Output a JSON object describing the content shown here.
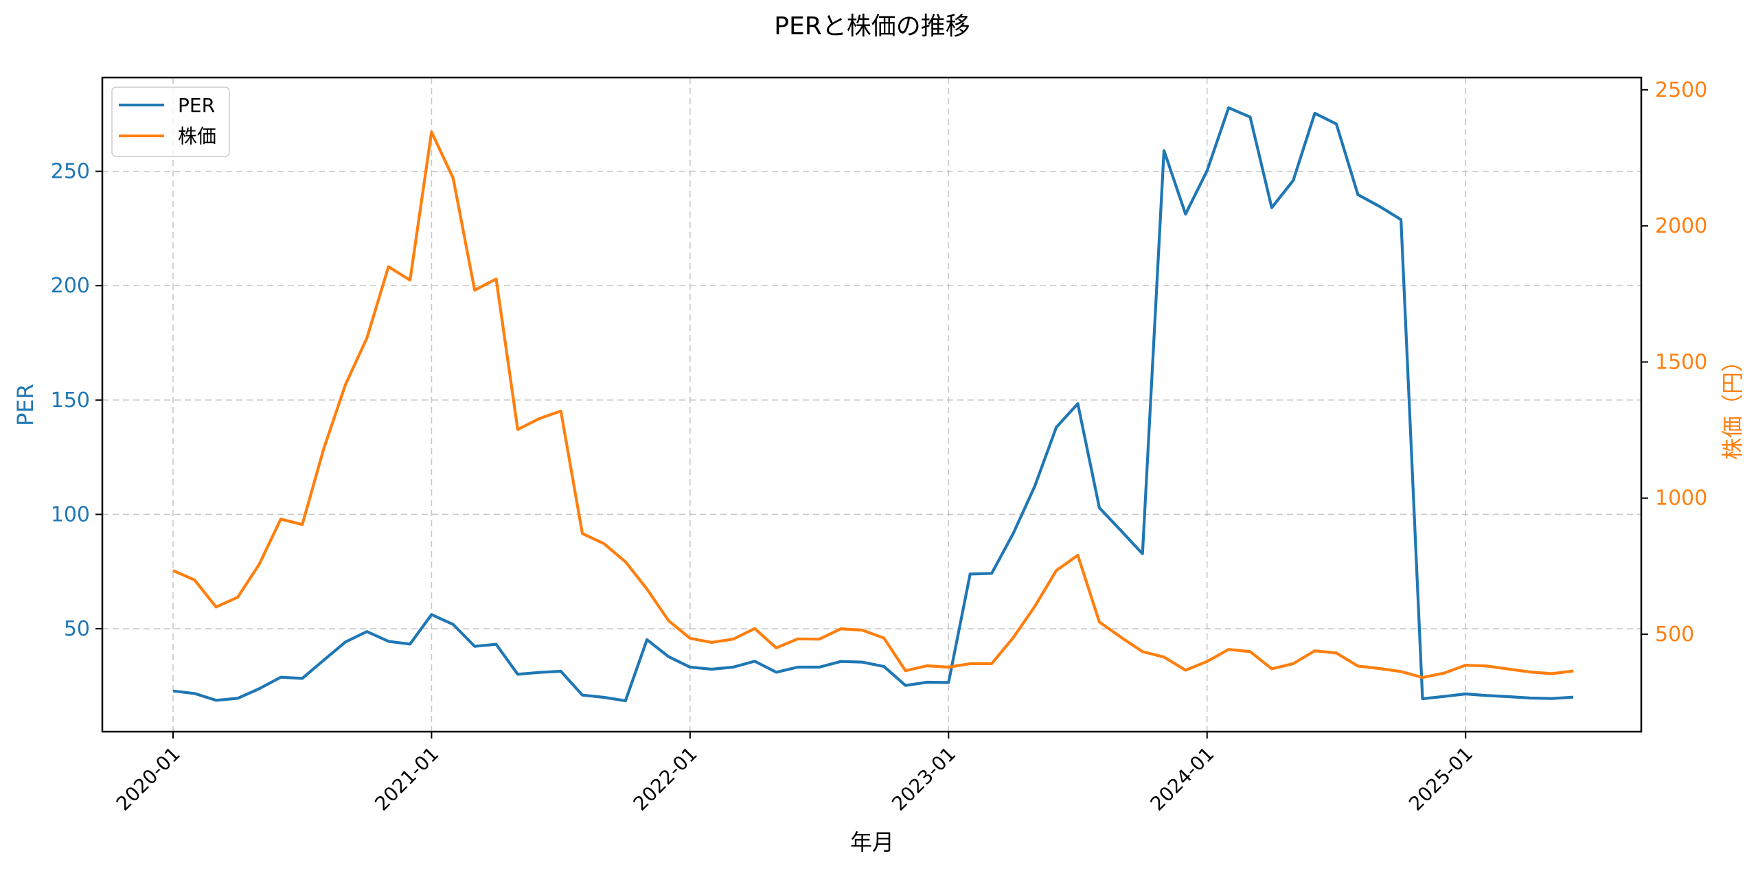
{
  "chart_data": {
    "type": "line",
    "title": "PERと株価の推移",
    "xlabel": "年月",
    "ylabel": "PER",
    "ylabel_right": "株価（円）",
    "grid": true,
    "legend_position": "upper left",
    "x_tick_labels": [
      "2020-01",
      "2021-01",
      "2022-01",
      "2023-01",
      "2024-01",
      "2025-01"
    ],
    "y_left_ticks": [
      50,
      100,
      150,
      200,
      250
    ],
    "y_right_ticks": [
      500,
      1000,
      1500,
      2000,
      2500
    ],
    "ylim_left": [
      5,
      291
    ],
    "ylim_right": [
      142,
      2545
    ],
    "x": [
      "2020-01",
      "2020-02",
      "2020-03",
      "2020-04",
      "2020-05",
      "2020-06",
      "2020-07",
      "2020-08",
      "2020-09",
      "2020-10",
      "2020-11",
      "2020-12",
      "2021-01",
      "2021-02",
      "2021-03",
      "2021-04",
      "2021-05",
      "2021-06",
      "2021-07",
      "2021-08",
      "2021-09",
      "2021-10",
      "2021-11",
      "2021-12",
      "2022-01",
      "2022-02",
      "2022-03",
      "2022-04",
      "2022-05",
      "2022-06",
      "2022-07",
      "2022-08",
      "2022-09",
      "2022-10",
      "2022-11",
      "2022-12",
      "2023-01",
      "2023-02",
      "2023-03",
      "2023-04",
      "2023-05",
      "2023-06",
      "2023-07",
      "2023-08",
      "2023-09",
      "2023-10",
      "2023-11",
      "2023-12",
      "2024-01",
      "2024-02",
      "2024-03",
      "2024-04",
      "2024-05",
      "2024-06",
      "2024-07",
      "2024-08",
      "2024-09",
      "2024-10",
      "2024-11",
      "2024-12",
      "2025-01",
      "2025-02",
      "2025-03",
      "2025-04",
      "2025-05",
      "2025-06"
    ],
    "series": [
      {
        "name": "PER",
        "axis": "left",
        "color": "#1f77b4",
        "values": [
          22.8,
          21.7,
          18.7,
          19.6,
          23.8,
          28.8,
          28.3,
          36.3,
          44.2,
          48.8,
          44.5,
          43.3,
          56.2,
          51.9,
          42.3,
          43.2,
          30.1,
          30.9,
          31.4,
          21.0,
          20.0,
          18.5,
          45.2,
          37.8,
          33.2,
          32.3,
          33.2,
          35.8,
          31.0,
          33.2,
          33.2,
          35.7,
          35.4,
          33.5,
          25.2,
          26.6,
          26.5,
          73.9,
          74.2,
          91.6,
          112.3,
          138.1,
          148.4,
          102.9,
          92.9,
          82.8,
          259.1,
          231.3,
          250.3,
          277.8,
          273.7,
          234.1,
          246.0,
          275.4,
          270.7,
          239.8,
          234.7,
          228.9,
          19.4,
          20.4,
          21.5,
          20.8,
          20.3,
          19.7,
          19.5,
          20.1
        ]
      },
      {
        "name": "株価",
        "axis": "right",
        "color": "#ff7f0e",
        "values": [
          734,
          699,
          600,
          636,
          757,
          923,
          903,
          1183,
          1417,
          1588,
          1850,
          1801,
          2345,
          2176,
          1764,
          1805,
          1252,
          1292,
          1320,
          870,
          833,
          766,
          666,
          550,
          485,
          470,
          482,
          521,
          450,
          483,
          482,
          520,
          515,
          486,
          366,
          384,
          379,
          392,
          392,
          487,
          602,
          734,
          790,
          545,
          489,
          436,
          416,
          368,
          400,
          444,
          436,
          373,
          392,
          439,
          431,
          383,
          374,
          363,
          341,
          357,
          386,
          383,
          372,
          361,
          355,
          365
        ]
      }
    ]
  }
}
